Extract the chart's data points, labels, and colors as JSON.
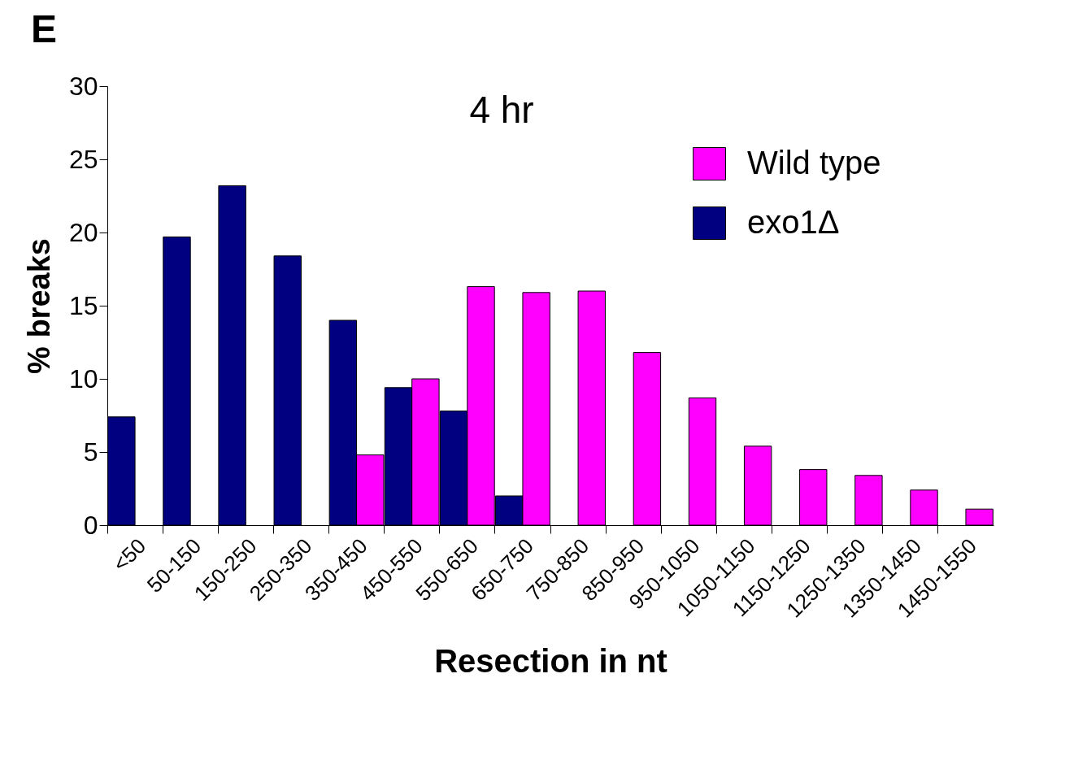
{
  "chart_data": {
    "type": "bar",
    "title": "4 hr",
    "xlabel": "Resection in nt",
    "ylabel": "% breaks",
    "annotations": [
      "E"
    ],
    "categories": [
      "<50",
      "50-150",
      "150-250",
      "250-350",
      "350-450",
      "450-550",
      "550-650",
      "650-750",
      "750-850",
      "850-950",
      "950-1050",
      "1050-1150",
      "1150-1250",
      "1250-1350",
      "1350-1450",
      "1450-1550"
    ],
    "series": [
      {
        "name": "exo1Δ",
        "color": "#000080",
        "values": [
          7.4,
          19.7,
          23.2,
          18.4,
          14.0,
          9.4,
          7.8,
          2.0,
          null,
          null,
          null,
          null,
          null,
          null,
          null,
          null
        ]
      },
      {
        "name": "Wild type",
        "color": "#ff00ff",
        "values": [
          null,
          null,
          null,
          null,
          4.8,
          10.0,
          16.3,
          15.9,
          16.0,
          11.8,
          8.7,
          5.4,
          3.8,
          3.4,
          2.4,
          1.1
        ]
      }
    ],
    "ylim": [
      0,
      30
    ],
    "yticks": [
      0,
      5,
      10,
      15,
      20,
      25,
      30
    ],
    "grid": false,
    "legend": "top right"
  }
}
